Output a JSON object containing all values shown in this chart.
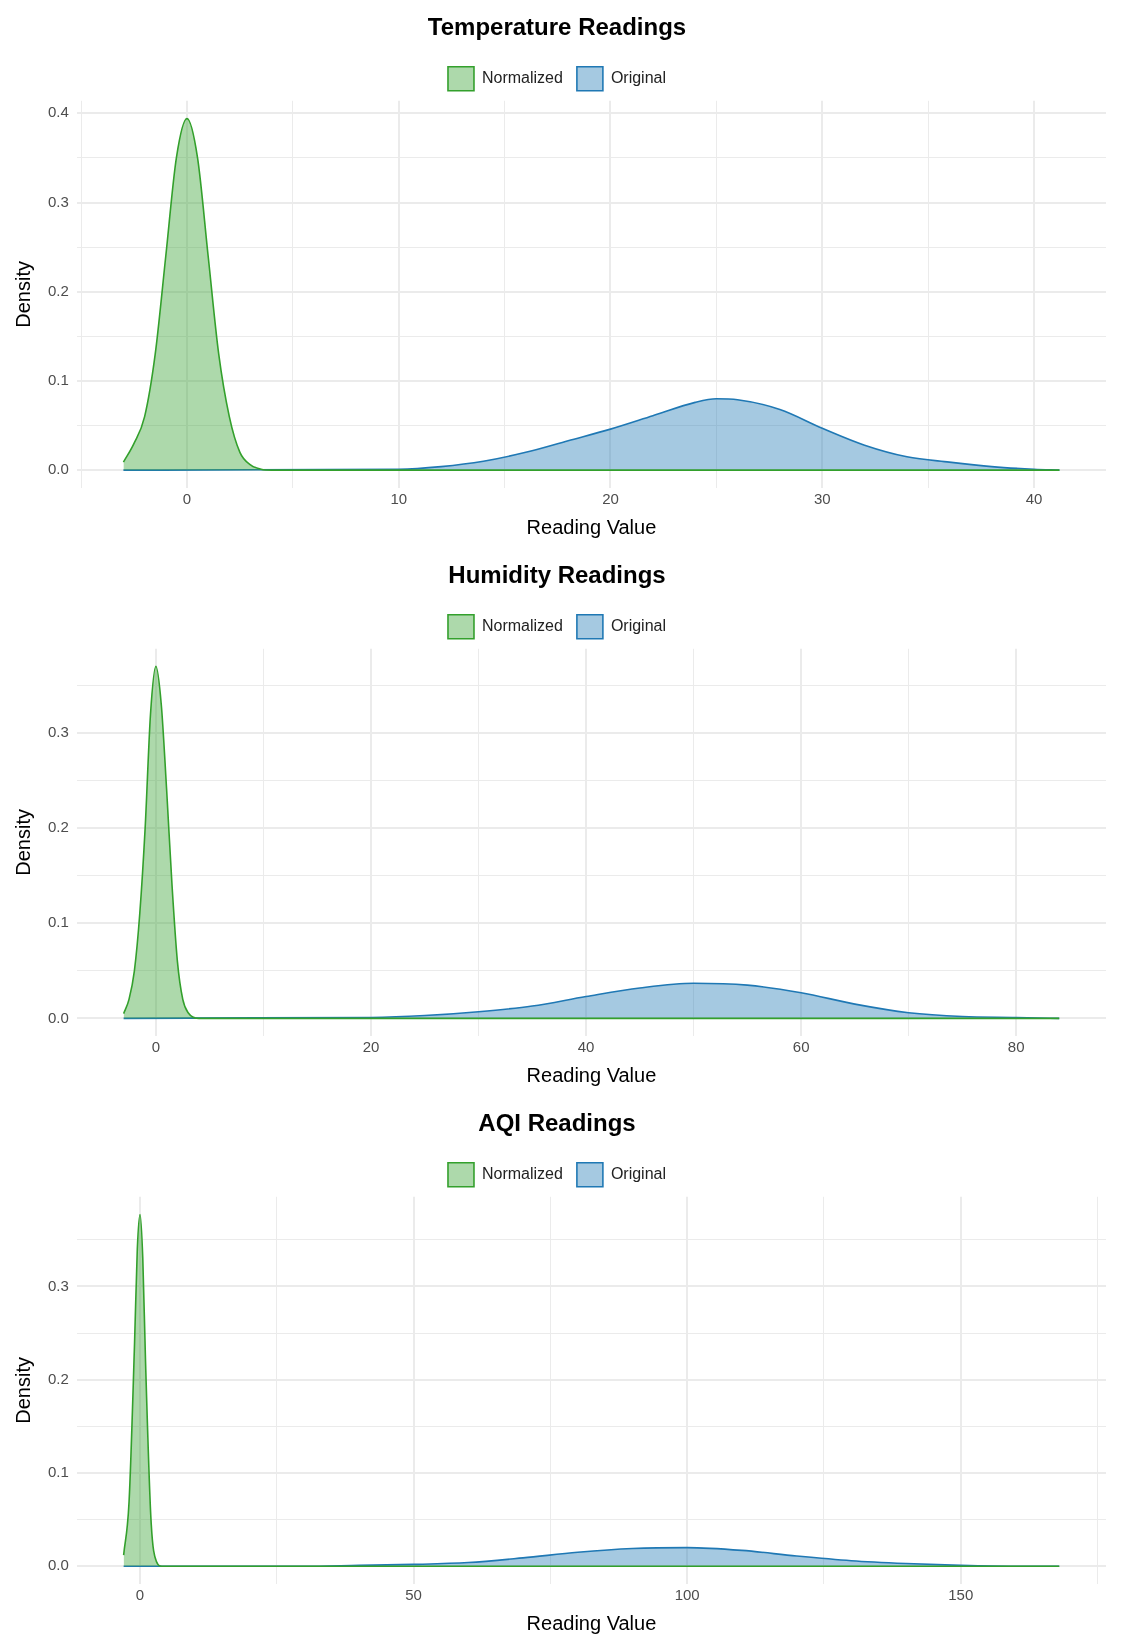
{
  "chart_data": [
    {
      "type": "area",
      "title": "Temperature Readings",
      "xlabel": "Reading Value",
      "ylabel": "Density",
      "legend": "top",
      "grid": true,
      "marker": "none",
      "xlim": [
        -5.2,
        43.4
      ],
      "xticks": [
        {
          "value": -5,
          "label": null
        },
        0,
        {
          "value": 5,
          "label": null
        },
        10,
        {
          "value": 15,
          "label": null
        },
        20,
        {
          "value": 25,
          "label": null
        },
        30,
        {
          "value": 35,
          "label": null
        },
        40
      ],
      "ylim": [
        -0.02,
        0.414
      ],
      "yticks": [
        {
          "value": 0,
          "label": "0.0"
        },
        {
          "value": 0.05,
          "label": null
        },
        0.1,
        {
          "value": 0.15,
          "label": null
        },
        0.2,
        {
          "value": 0.25,
          "label": null
        },
        0.3,
        {
          "value": 0.35,
          "label": null
        },
        0.4
      ],
      "series": [
        {
          "name": "Normalized",
          "color": "#33a02c",
          "x": [
            -3,
            -2.5,
            -2,
            -1.5,
            -1,
            -0.5,
            0,
            0.5,
            1,
            1.5,
            2,
            2.5,
            3,
            3.5,
            4,
            41.2
          ],
          "values": [
            0.009,
            0.03,
            0.06,
            0.13,
            0.24,
            0.35,
            0.394,
            0.35,
            0.24,
            0.13,
            0.06,
            0.02,
            0.006,
            0.001,
            0,
            0
          ]
        },
        {
          "name": "Original",
          "color": "#1f78b4",
          "x": [
            -3,
            10,
            12,
            14,
            16,
            18,
            20,
            22,
            24,
            25,
            26,
            28,
            30,
            32,
            34,
            36,
            38,
            40,
            41.2
          ],
          "values": [
            0,
            0.001,
            0.004,
            0.01,
            0.02,
            0.033,
            0.046,
            0.061,
            0.076,
            0.08,
            0.079,
            0.068,
            0.047,
            0.028,
            0.015,
            0.009,
            0.004,
            0.001,
            0
          ]
        }
      ]
    },
    {
      "type": "area",
      "title": "Humidity Readings",
      "xlabel": "Reading Value",
      "ylabel": "Density",
      "legend": "top",
      "grid": true,
      "marker": "none",
      "xlim": [
        -7.35,
        88.35
      ],
      "xticks": [
        0,
        {
          "value": 10,
          "label": null
        },
        20,
        {
          "value": 30,
          "label": null
        },
        40,
        {
          "value": 50,
          "label": null
        },
        60,
        {
          "value": 70,
          "label": null
        },
        80
      ],
      "ylim": [
        -0.0185,
        0.3885
      ],
      "yticks": [
        {
          "value": 0,
          "label": "0.0"
        },
        {
          "value": 0.05,
          "label": null
        },
        0.1,
        {
          "value": 0.15,
          "label": null
        },
        0.2,
        {
          "value": 0.25,
          "label": null
        },
        0.3,
        {
          "value": 0.35,
          "label": null
        }
      ],
      "series": [
        {
          "name": "Normalized",
          "color": "#33a02c",
          "x": [
            -3,
            -2.5,
            -2,
            -1.5,
            -1,
            -0.5,
            0,
            0.5,
            1,
            1.5,
            2,
            2.5,
            3,
            4,
            84
          ],
          "values": [
            0.005,
            0.02,
            0.05,
            0.11,
            0.2,
            0.32,
            0.37,
            0.33,
            0.24,
            0.14,
            0.06,
            0.02,
            0.006,
            0,
            0
          ]
        },
        {
          "name": "Original",
          "color": "#1f78b4",
          "x": [
            -3,
            20,
            25,
            30,
            35,
            40,
            45,
            50,
            55,
            60,
            65,
            70,
            75,
            80,
            84
          ],
          "values": [
            0,
            0.001,
            0.003,
            0.007,
            0.013,
            0.023,
            0.032,
            0.037,
            0.035,
            0.027,
            0.015,
            0.006,
            0.002,
            0.001,
            0
          ]
        }
      ]
    },
    {
      "type": "area",
      "title": "AQI Readings",
      "xlabel": "Reading Value",
      "ylabel": "Density",
      "legend": "top",
      "grid": true,
      "marker": "none",
      "xlim": [
        -11.55,
        176.55
      ],
      "xticks": [
        0,
        {
          "value": 25,
          "label": null
        },
        50,
        {
          "value": 75,
          "label": null
        },
        100,
        {
          "value": 125,
          "label": null
        },
        150,
        {
          "value": 175,
          "label": null
        }
      ],
      "ylim": [
        -0.019,
        0.396
      ],
      "yticks": [
        {
          "value": 0,
          "label": "0.0"
        },
        {
          "value": 0.05,
          "label": null
        },
        0.1,
        {
          "value": 0.15,
          "label": null
        },
        0.2,
        {
          "value": 0.25,
          "label": null
        },
        0.3,
        {
          "value": 0.35,
          "label": null
        }
      ],
      "series": [
        {
          "name": "Normalized",
          "color": "#33a02c",
          "x": [
            -3,
            -2,
            -1,
            -0.5,
            0,
            0.5,
            1,
            2,
            3,
            4,
            168
          ],
          "values": [
            0.012,
            0.07,
            0.24,
            0.34,
            0.377,
            0.33,
            0.22,
            0.05,
            0.005,
            0,
            0
          ]
        },
        {
          "name": "Original",
          "color": "#1f78b4",
          "x": [
            -3,
            30,
            40,
            50,
            60,
            70,
            80,
            90,
            100,
            110,
            120,
            130,
            140,
            150,
            160,
            168
          ],
          "values": [
            0,
            0,
            0.001,
            0.002,
            0.004,
            0.009,
            0.015,
            0.019,
            0.02,
            0.017,
            0.011,
            0.006,
            0.003,
            0.001,
            0,
            0
          ]
        }
      ]
    }
  ]
}
